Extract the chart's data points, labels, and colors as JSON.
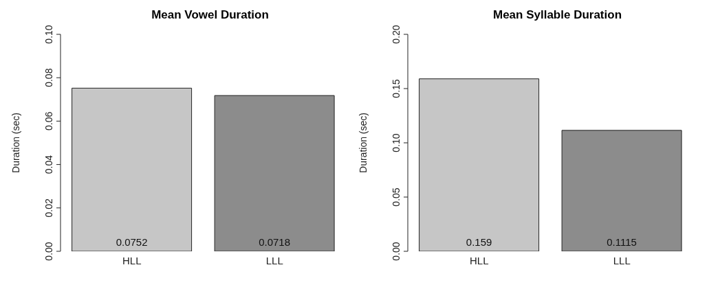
{
  "chart_data": [
    {
      "type": "bar",
      "title": "Mean Vowel Duration",
      "ylabel": "Duration (sec)",
      "categories": [
        "HLL",
        "LLL"
      ],
      "values": [
        0.0752,
        0.0718
      ],
      "colors": [
        "#c6c6c6",
        "#8c8c8c"
      ],
      "ylim": [
        0,
        0.1
      ],
      "yticks": [
        {
          "value": 0,
          "label": "0.00"
        },
        {
          "value": 0.02,
          "label": "0.02"
        },
        {
          "value": 0.04,
          "label": "0.04"
        },
        {
          "value": 0.06,
          "label": "0.06"
        },
        {
          "value": 0.08,
          "label": "0.08"
        },
        {
          "value": 0.1,
          "label": "0.10"
        }
      ],
      "data_labels": true,
      "grid": false,
      "legend": false
    },
    {
      "type": "bar",
      "title": "Mean Syllable Duration",
      "ylabel": "Duration (sec)",
      "categories": [
        "HLL",
        "LLL"
      ],
      "values": [
        0.159,
        0.1115
      ],
      "colors": [
        "#c6c6c6",
        "#8c8c8c"
      ],
      "ylim": [
        0,
        0.2
      ],
      "yticks": [
        {
          "value": 0,
          "label": "0.00"
        },
        {
          "value": 0.05,
          "label": "0.05"
        },
        {
          "value": 0.1,
          "label": "0.10"
        },
        {
          "value": 0.15,
          "label": "0.15"
        },
        {
          "value": 0.2,
          "label": "0.20"
        }
      ],
      "data_labels": true,
      "grid": false,
      "legend": false
    }
  ]
}
